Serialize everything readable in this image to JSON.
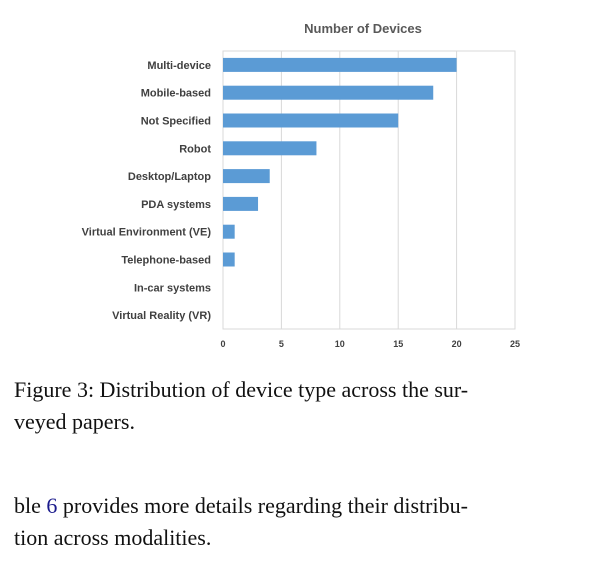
{
  "chart_data": {
    "type": "bar",
    "orientation": "horizontal",
    "title": "Number of Devices",
    "categories": [
      "Multi-device",
      "Mobile-based",
      "Not Specified",
      "Robot",
      "Desktop/Laptop",
      "PDA systems",
      "Virtual Environment (VE)",
      "Telephone-based",
      "In-car systems",
      "Virtual Reality (VR)"
    ],
    "values": [
      20,
      18,
      15,
      8,
      4,
      3,
      1,
      1,
      0,
      0
    ],
    "xlim": [
      0,
      25
    ],
    "xticks": [
      0,
      5,
      10,
      15,
      20,
      25
    ],
    "grid": true,
    "bar_color": "#5b9bd5",
    "grid_color": "#d9d9d9"
  },
  "caption": {
    "line1": "Figure 3:  Distribution of device type across the sur-",
    "line2": "veyed papers."
  },
  "body": {
    "line1_pre": "ble ",
    "line1_ref": "6",
    "line1_post": " provides more details regarding their distribu-",
    "line2": "tion across modalities."
  }
}
